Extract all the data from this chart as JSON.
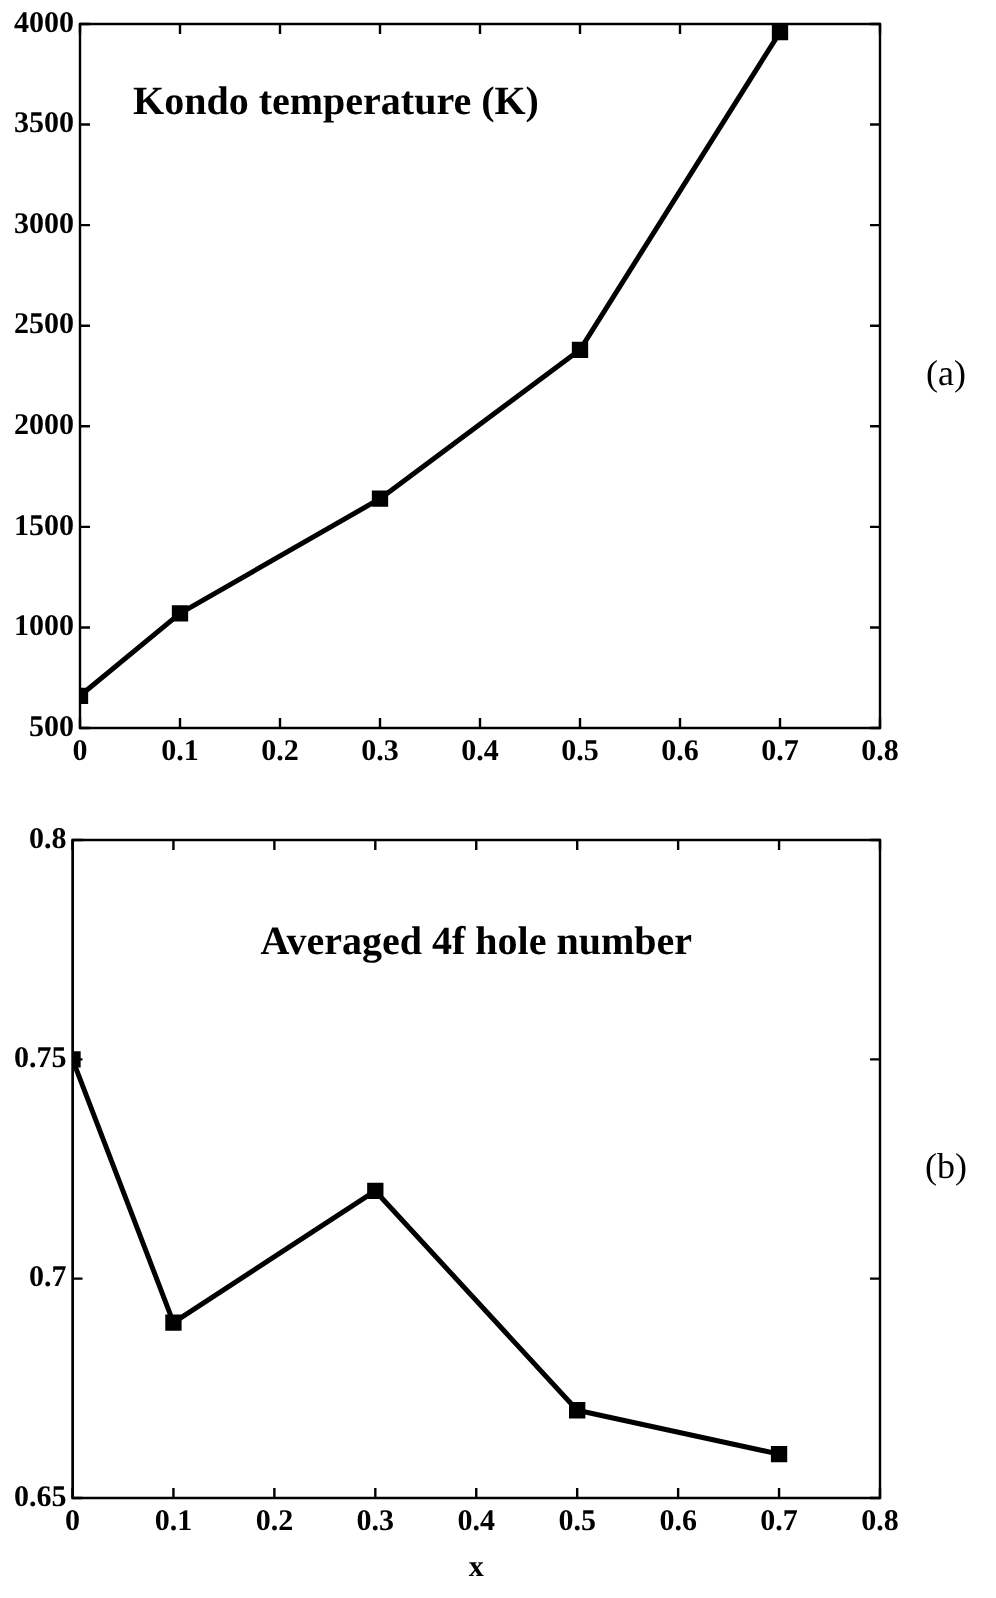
{
  "chart_data": [
    {
      "type": "line",
      "title": "Kondo temperature (K)",
      "annotations": [
        "(a)"
      ],
      "x": [
        0,
        0.1,
        0.3,
        0.5,
        0.7
      ],
      "series": [
        {
          "color": "#000000",
          "values": [
            660,
            1070,
            1640,
            2380,
            3960
          ]
        }
      ],
      "xlim": [
        0,
        0.8
      ],
      "xticks": [
        0,
        0.1,
        0.2,
        0.3,
        0.4,
        0.5,
        0.6,
        0.7,
        0.8
      ],
      "ylim": [
        500,
        4000
      ],
      "yticks": [
        500,
        1000,
        1500,
        2000,
        2500,
        3000,
        3500,
        4000
      ],
      "grid": false,
      "legend": false,
      "marker": "square",
      "line_style": "solid"
    },
    {
      "type": "line",
      "title": "Averaged 4f hole number",
      "xlabel": "x",
      "annotations": [
        "(b)"
      ],
      "x": [
        0,
        0.1,
        0.3,
        0.5,
        0.7
      ],
      "series": [
        {
          "color": "#000000",
          "values": [
            0.75,
            0.69,
            0.72,
            0.67,
            0.66
          ]
        }
      ],
      "xlim": [
        0,
        0.8
      ],
      "xticks": [
        0,
        0.1,
        0.2,
        0.3,
        0.4,
        0.5,
        0.6,
        0.7,
        0.8
      ],
      "ylim": [
        0.65,
        0.8
      ],
      "yticks": [
        0.65,
        0.7,
        0.75,
        0.8
      ],
      "grid": false,
      "legend": false,
      "marker": "square",
      "line_style": "solid"
    }
  ]
}
